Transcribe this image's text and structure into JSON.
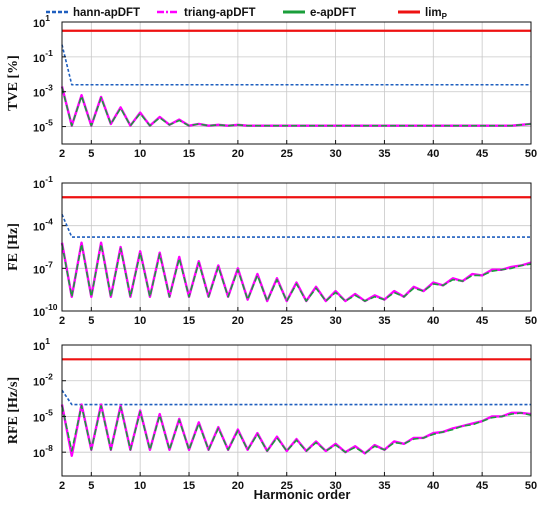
{
  "chart_data": {
    "type": "line",
    "legend": {
      "placement": "top",
      "entries": [
        {
          "label": "hann-apDFT",
          "color": "#1f5fbf",
          "style": "dashed"
        },
        {
          "label": "triang-apDFT",
          "color": "#ff00ff",
          "style": "dashdot"
        },
        {
          "label": "e-apDFT",
          "color": "#1a9e3a",
          "style": "solid"
        },
        {
          "label": "lim",
          "subscript": "P",
          "color": "#ee1111",
          "style": "solid"
        }
      ]
    },
    "xlabel": "Harmonic order",
    "x": [
      2,
      3,
      4,
      5,
      6,
      7,
      8,
      9,
      10,
      11,
      12,
      13,
      14,
      15,
      16,
      17,
      18,
      19,
      20,
      21,
      22,
      23,
      24,
      25,
      26,
      27,
      28,
      29,
      30,
      31,
      32,
      33,
      34,
      35,
      36,
      37,
      38,
      39,
      40,
      41,
      42,
      43,
      44,
      45,
      46,
      47,
      48,
      49,
      50
    ],
    "xlim": [
      2,
      50
    ],
    "xticks": [
      "2",
      "5",
      "10",
      "15",
      "20",
      "25",
      "30",
      "35",
      "40",
      "45",
      "50"
    ],
    "grid": true,
    "panels": [
      {
        "ylabel": "TVE [%]",
        "yscale": "log",
        "ylim_exp": [
          -6,
          1
        ],
        "yticks": [
          {
            "base": "10",
            "exp": "1"
          },
          {
            "base": "10",
            "exp": "-1"
          },
          {
            "base": "10",
            "exp": "-3"
          },
          {
            "base": "10",
            "exp": "-5"
          }
        ],
        "series": [
          {
            "name": "lim",
            "values_log10": [
              0.5
            ]
          },
          {
            "name": "hann-apDFT",
            "values_log10": [
              -0.3,
              -2.6,
              -2.6,
              -2.6,
              -2.6,
              -2.6,
              -2.6,
              -2.6,
              -2.6,
              -2.6,
              -2.6,
              -2.6,
              -2.6,
              -2.6,
              -2.6,
              -2.6,
              -2.6,
              -2.6,
              -2.6,
              -2.6,
              -2.6,
              -2.6,
              -2.6,
              -2.6,
              -2.6,
              -2.6,
              -2.6,
              -2.6,
              -2.6,
              -2.6,
              -2.6,
              -2.6,
              -2.6,
              -2.6,
              -2.6,
              -2.6,
              -2.6,
              -2.6,
              -2.6,
              -2.6,
              -2.6,
              -2.6,
              -2.6,
              -2.6,
              -2.6,
              -2.6,
              -2.6,
              -2.6,
              -2.6
            ]
          },
          {
            "name": "triang-apDFT",
            "values_log10": [
              -2.7,
              -4.95,
              -3.2,
              -4.95,
              -3.3,
              -4.85,
              -3.9,
              -4.95,
              -4.2,
              -4.95,
              -4.45,
              -4.9,
              -4.6,
              -4.95,
              -4.85,
              -4.95,
              -4.9,
              -4.95,
              -4.9,
              -4.95,
              -4.95,
              -4.95,
              -4.95,
              -4.95,
              -4.95,
              -4.95,
              -4.95,
              -4.95,
              -4.95,
              -4.95,
              -4.95,
              -4.95,
              -4.95,
              -4.95,
              -4.95,
              -4.95,
              -4.95,
              -4.95,
              -4.95,
              -4.95,
              -4.95,
              -4.95,
              -4.95,
              -4.95,
              -4.95,
              -4.95,
              -4.95,
              -4.9,
              -4.85
            ]
          },
          {
            "name": "e-apDFT",
            "values_log10": [
              -2.75,
              -4.95,
              -3.25,
              -4.95,
              -3.35,
              -4.85,
              -3.95,
              -4.95,
              -4.25,
              -4.95,
              -4.5,
              -4.9,
              -4.65,
              -4.95,
              -4.85,
              -4.95,
              -4.9,
              -4.95,
              -4.9,
              -4.95,
              -4.95,
              -4.95,
              -4.95,
              -4.95,
              -4.95,
              -4.95,
              -4.95,
              -4.95,
              -4.95,
              -4.95,
              -4.95,
              -4.95,
              -4.95,
              -4.95,
              -4.95,
              -4.95,
              -4.95,
              -4.95,
              -4.95,
              -4.95,
              -4.95,
              -4.95,
              -4.95,
              -4.95,
              -4.95,
              -4.95,
              -4.95,
              -4.9,
              -4.85
            ]
          }
        ]
      },
      {
        "ylabel": "FE [Hz]",
        "yscale": "log",
        "ylim_exp": [
          -10,
          -1
        ],
        "yticks": [
          {
            "base": "10",
            "exp": "-1"
          },
          {
            "base": "10",
            "exp": "-4"
          },
          {
            "base": "10",
            "exp": "-7"
          },
          {
            "base": "10",
            "exp": "-10"
          }
        ],
        "series": [
          {
            "name": "lim",
            "values_log10": [
              -2.0
            ]
          },
          {
            "name": "hann-apDFT",
            "values_log10": [
              -3.2,
              -4.8,
              -4.8,
              -4.8,
              -4.8,
              -4.8,
              -4.8,
              -4.8,
              -4.8,
              -4.8,
              -4.8,
              -4.8,
              -4.8,
              -4.8,
              -4.8,
              -4.8,
              -4.8,
              -4.8,
              -4.8,
              -4.8,
              -4.8,
              -4.8,
              -4.8,
              -4.8,
              -4.8,
              -4.8,
              -4.8,
              -4.8,
              -4.8,
              -4.8,
              -4.8,
              -4.8,
              -4.8,
              -4.8,
              -4.8,
              -4.8,
              -4.8,
              -4.8,
              -4.8,
              -4.8,
              -4.8,
              -4.8,
              -4.8,
              -4.8,
              -4.8,
              -4.8,
              -4.8,
              -4.8,
              -4.8
            ]
          },
          {
            "name": "triang-apDFT",
            "values_log10": [
              -5.2,
              -9.0,
              -5.2,
              -9.0,
              -5.2,
              -9.0,
              -5.5,
              -9.0,
              -5.8,
              -9.0,
              -5.9,
              -9.0,
              -6.2,
              -9.0,
              -6.5,
              -9.0,
              -6.8,
              -9.0,
              -7.0,
              -9.2,
              -7.4,
              -9.3,
              -7.7,
              -9.3,
              -8.0,
              -9.3,
              -8.3,
              -9.3,
              -8.6,
              -9.3,
              -8.8,
              -9.3,
              -8.9,
              -9.2,
              -8.6,
              -9.0,
              -8.3,
              -8.6,
              -8.0,
              -8.2,
              -7.7,
              -7.9,
              -7.4,
              -7.5,
              -7.1,
              -7.1,
              -6.9,
              -6.8,
              -6.6
            ]
          },
          {
            "name": "e-apDFT",
            "values_log10": [
              -5.3,
              -9.0,
              -5.3,
              -9.0,
              -5.3,
              -9.0,
              -5.6,
              -9.0,
              -5.9,
              -9.0,
              -6.0,
              -9.0,
              -6.3,
              -9.0,
              -6.6,
              -9.0,
              -6.9,
              -9.0,
              -7.1,
              -9.2,
              -7.5,
              -9.3,
              -7.8,
              -9.3,
              -8.1,
              -9.3,
              -8.4,
              -9.3,
              -8.7,
              -9.3,
              -8.9,
              -9.3,
              -9.0,
              -9.2,
              -8.7,
              -9.0,
              -8.4,
              -8.6,
              -8.1,
              -8.2,
              -7.8,
              -7.9,
              -7.5,
              -7.5,
              -7.2,
              -7.1,
              -7.0,
              -6.8,
              -6.7
            ]
          }
        ]
      },
      {
        "ylabel": "RFE [Hz/s]",
        "yscale": "log",
        "ylim_exp": [
          -10,
          1
        ],
        "yticks": [
          {
            "base": "10",
            "exp": "1"
          },
          {
            "base": "10",
            "exp": "-2"
          },
          {
            "base": "10",
            "exp": "-5"
          },
          {
            "base": "10",
            "exp": "-8"
          }
        ],
        "series": [
          {
            "name": "lim",
            "values_log10": [
              -0.2
            ]
          },
          {
            "name": "hann-apDFT",
            "values_log10": [
              -2.8,
              -4.0,
              -4.0,
              -4.0,
              -4.0,
              -4.0,
              -4.0,
              -4.0,
              -4.0,
              -4.0,
              -4.0,
              -4.0,
              -4.0,
              -4.0,
              -4.0,
              -4.0,
              -4.0,
              -4.0,
              -4.0,
              -4.0,
              -4.0,
              -4.0,
              -4.0,
              -4.0,
              -4.0,
              -4.0,
              -4.0,
              -4.0,
              -4.0,
              -4.0,
              -4.0,
              -4.0,
              -4.0,
              -4.0,
              -4.0,
              -4.0,
              -4.0,
              -4.0,
              -4.0,
              -4.0,
              -4.0,
              -4.0,
              -4.0,
              -4.0,
              -4.0,
              -4.0,
              -4.0,
              -4.0,
              -4.0
            ]
          },
          {
            "name": "triang-apDFT",
            "values_log10": [
              -4.0,
              -8.3,
              -4.0,
              -7.8,
              -4.0,
              -7.8,
              -4.1,
              -7.8,
              -4.5,
              -7.8,
              -4.8,
              -7.8,
              -5.2,
              -7.8,
              -5.5,
              -7.8,
              -5.9,
              -7.8,
              -6.1,
              -7.8,
              -6.4,
              -7.9,
              -6.7,
              -7.9,
              -6.9,
              -7.9,
              -7.1,
              -7.9,
              -7.3,
              -8.0,
              -7.5,
              -8.1,
              -7.4,
              -7.8,
              -7.1,
              -7.3,
              -6.8,
              -6.8,
              -6.4,
              -6.3,
              -6.0,
              -5.8,
              -5.6,
              -5.4,
              -5.0,
              -5.0,
              -4.7,
              -4.7,
              -4.8
            ]
          },
          {
            "name": "e-apDFT",
            "values_log10": [
              -4.1,
              -7.9,
              -4.1,
              -7.8,
              -4.1,
              -7.8,
              -4.2,
              -7.8,
              -4.6,
              -7.8,
              -4.9,
              -7.8,
              -5.3,
              -7.8,
              -5.6,
              -7.8,
              -6.0,
              -7.8,
              -6.2,
              -7.8,
              -6.5,
              -7.9,
              -6.8,
              -7.9,
              -7.0,
              -7.9,
              -7.2,
              -7.9,
              -7.4,
              -8.0,
              -7.6,
              -8.1,
              -7.5,
              -7.8,
              -7.2,
              -7.3,
              -6.9,
              -6.8,
              -6.5,
              -6.3,
              -6.1,
              -5.8,
              -5.7,
              -5.4,
              -5.1,
              -5.0,
              -4.8,
              -4.7,
              -4.9
            ]
          }
        ]
      }
    ]
  }
}
